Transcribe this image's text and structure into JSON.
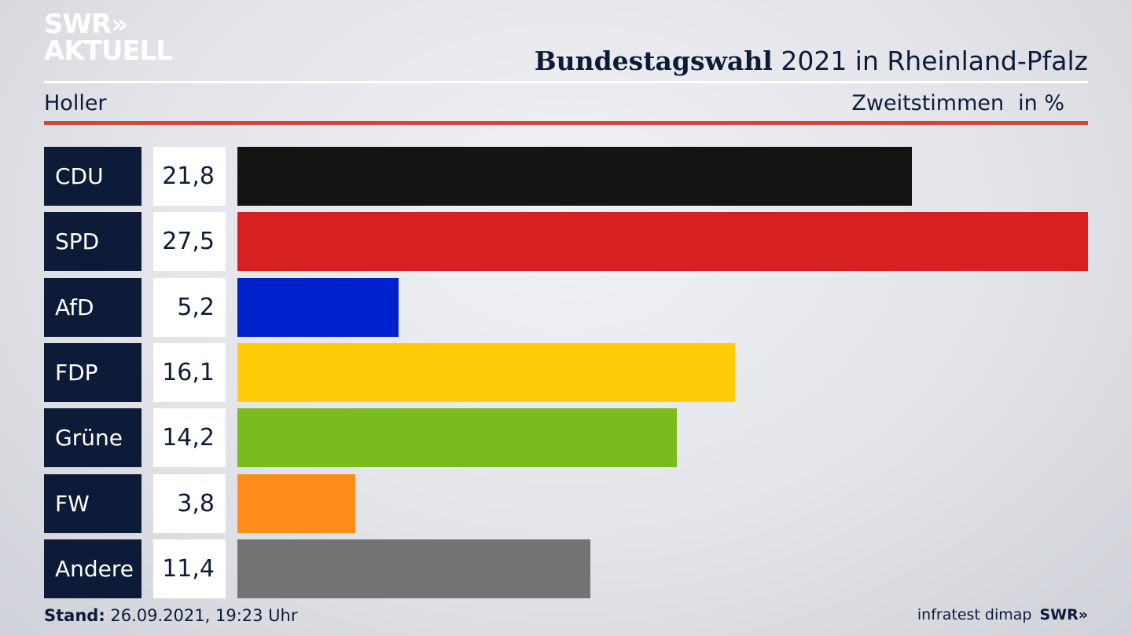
{
  "logo": {
    "line1": "SWR»",
    "line2": "AKTUELL"
  },
  "header": {
    "title_bold": "Bundestagswahl",
    "title_rest": " 2021 in Rheinland-Pfalz"
  },
  "subheader": {
    "location": "Holler",
    "vote_type": "Zweitstimmen",
    "unit": "in %"
  },
  "footer": {
    "stand_label": "Stand:",
    "stand_value": " 26.09.2021, 19:23 Uhr",
    "source": "infratest dimap",
    "brand": "SWR»"
  },
  "chart_data": {
    "type": "bar",
    "categories": [
      "CDU",
      "SPD",
      "AfD",
      "FDP",
      "Grüne",
      "FW",
      "Andere"
    ],
    "values": [
      21.8,
      27.5,
      5.2,
      16.1,
      14.2,
      3.8,
      11.4
    ],
    "value_labels": [
      "21,8",
      "27,5",
      "5,2",
      "16,1",
      "14,2",
      "3,8",
      "11,4"
    ],
    "colors": [
      "#141414",
      "#d82020",
      "#0022cc",
      "#ffcc0a",
      "#78bc1e",
      "#ff8c18",
      "#737373"
    ],
    "xlim": [
      0,
      27.5
    ],
    "orientation": "horizontal"
  }
}
